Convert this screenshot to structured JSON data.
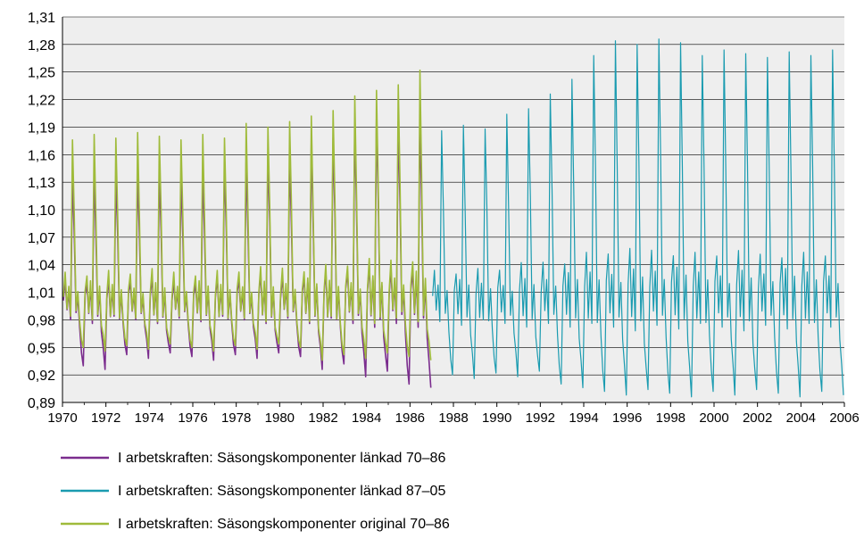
{
  "chart_data": {
    "type": "line",
    "title": "",
    "xlabel": "",
    "ylabel": "",
    "xlim": [
      1970,
      2006
    ],
    "ylim": [
      0.89,
      1.31
    ],
    "grid": true,
    "legend_position": "bottom",
    "plot_background": "#eeeeee",
    "y_ticks": [
      "0,89",
      "0,92",
      "0,95",
      "0,98",
      "1,01",
      "1,04",
      "1,07",
      "1,10",
      "1,13",
      "1,16",
      "1,19",
      "1,22",
      "1,25",
      "1,28",
      "1,31"
    ],
    "x_ticks": [
      "1970",
      "1972",
      "1974",
      "1976",
      "1978",
      "1980",
      "1982",
      "1984",
      "1986",
      "1988",
      "1990",
      "1992",
      "1994",
      "1996",
      "1998",
      "2000",
      "2002",
      "2004",
      "2006"
    ],
    "series": [
      {
        "name": "I arbetskraften: Säsongskomponenter länkad 70–86",
        "color": "#7b2d8e",
        "start_year": 1970,
        "end_year": 1986,
        "annual_peaks": [
          1.14,
          1.14,
          1.14,
          1.14,
          1.14,
          1.14,
          1.14,
          1.15,
          1.15,
          1.16,
          1.16,
          1.17,
          1.18,
          1.19,
          1.2,
          1.2,
          1.2
        ],
        "annual_troughs": [
          0.93,
          0.93,
          0.94,
          0.94,
          0.94,
          0.94,
          0.94,
          0.94,
          0.94,
          0.94,
          0.94,
          0.93,
          0.93,
          0.92,
          0.92,
          0.91,
          0.91
        ]
      },
      {
        "name": "I arbetskraften: Säsongskomponenter länkad 87–05",
        "color": "#1a9bb0",
        "start_year": 1987,
        "end_year": 2005,
        "annual_peaks": [
          1.19,
          1.19,
          1.19,
          1.2,
          1.21,
          1.23,
          1.24,
          1.27,
          1.28,
          1.28,
          1.29,
          1.28,
          1.27,
          1.27,
          1.27,
          1.27,
          1.27,
          1.27,
          1.27
        ],
        "annual_troughs": [
          0.92,
          0.92,
          0.92,
          0.92,
          0.92,
          0.91,
          0.91,
          0.9,
          0.9,
          0.9,
          0.9,
          0.9,
          0.9,
          0.9,
          0.9,
          0.9,
          0.9,
          0.9,
          0.9
        ]
      },
      {
        "name": "I arbetskraften: Säsongskomponenter original 70–86",
        "color": "#9fbb3a",
        "start_year": 1970,
        "end_year": 1986,
        "annual_peaks": [
          1.18,
          1.18,
          1.18,
          1.18,
          1.18,
          1.18,
          1.18,
          1.18,
          1.19,
          1.19,
          1.2,
          1.2,
          1.21,
          1.22,
          1.23,
          1.24,
          1.25
        ],
        "annual_troughs": [
          0.95,
          0.95,
          0.95,
          0.95,
          0.95,
          0.95,
          0.95,
          0.95,
          0.95,
          0.95,
          0.95,
          0.94,
          0.94,
          0.94,
          0.94,
          0.94,
          0.94
        ]
      }
    ]
  }
}
